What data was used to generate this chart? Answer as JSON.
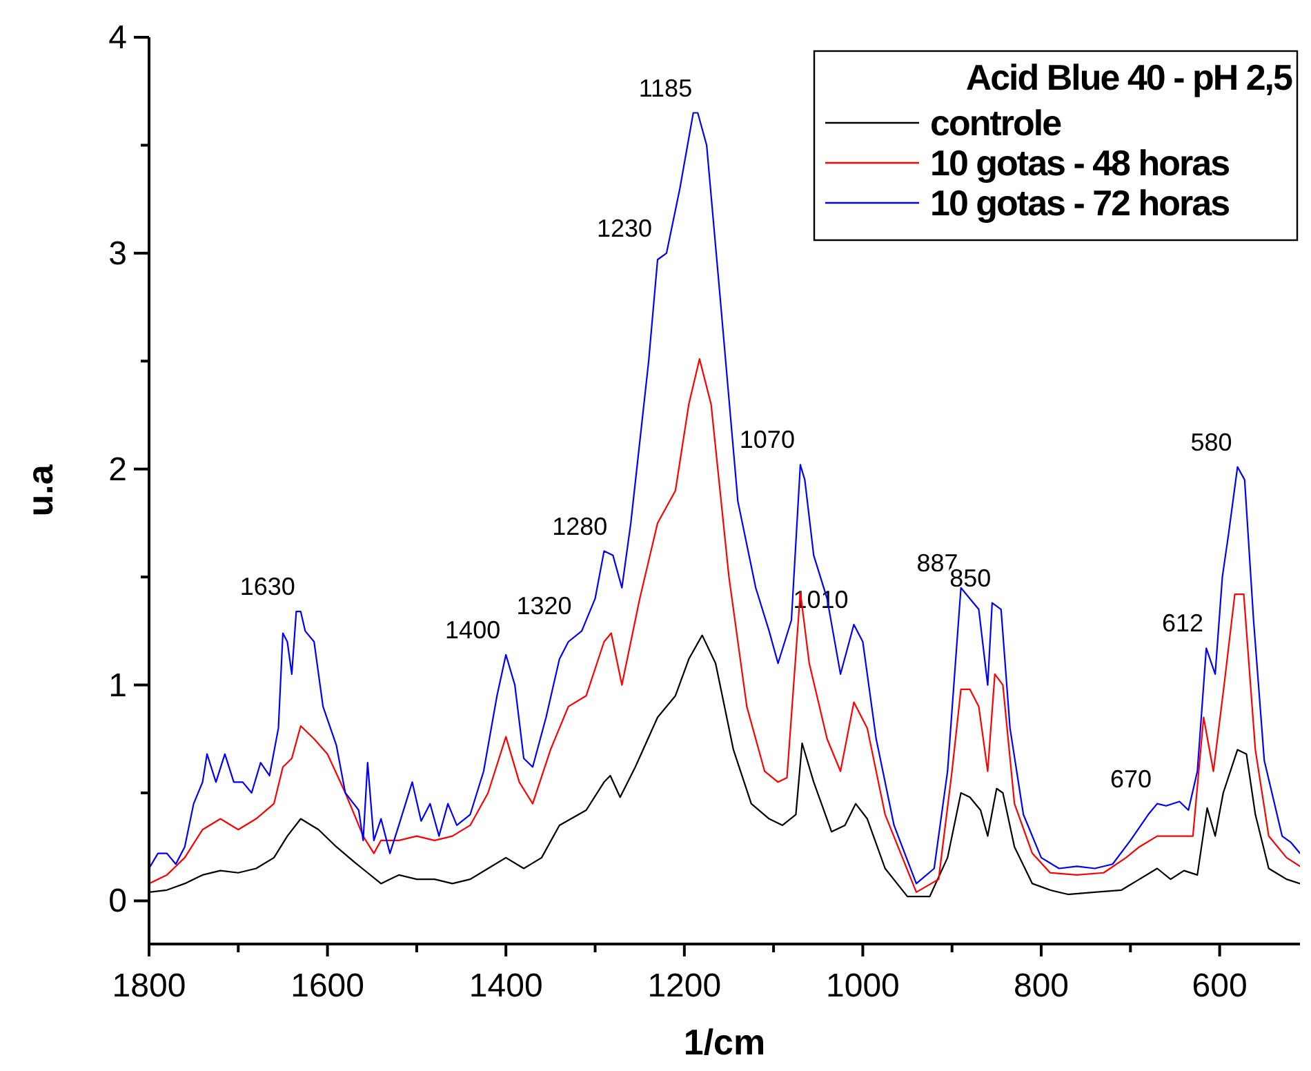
{
  "chart_data": {
    "type": "line",
    "xlabel": "1/cm",
    "ylabel": "u.a",
    "legend_title": "Acid Blue 40 - pH 2,5",
    "legend": "top right",
    "grid": false,
    "line_style": "solid",
    "xlim": [
      1800,
      510
    ],
    "xticks": [
      1800,
      {
        "value": 1700,
        "label": null
      },
      1600,
      {
        "value": 1500,
        "label": null
      },
      1400,
      {
        "value": 1300,
        "label": null
      },
      1200,
      {
        "value": 1100,
        "label": null
      },
      1000,
      {
        "value": 900,
        "label": null
      },
      800,
      {
        "value": 700,
        "label": null
      },
      600
    ],
    "ylim": [
      -0.2,
      4
    ],
    "yticks": [
      0,
      {
        "value": 0.5,
        "label": null
      },
      1,
      {
        "value": 1.5,
        "label": null
      },
      2,
      {
        "value": 2.5,
        "label": null
      },
      3,
      {
        "value": 3.5,
        "label": null
      },
      4
    ],
    "series": [
      {
        "name": "controle",
        "color": "#000000",
        "x": [
          1800,
          1780,
          1760,
          1740,
          1720,
          1700,
          1680,
          1660,
          1645,
          1630,
          1610,
          1590,
          1570,
          1555,
          1540,
          1520,
          1500,
          1480,
          1460,
          1440,
          1420,
          1400,
          1380,
          1360,
          1340,
          1310,
          1290,
          1283,
          1272,
          1255,
          1230,
          1210,
          1195,
          1180,
          1165,
          1145,
          1125,
          1105,
          1090,
          1075,
          1068,
          1055,
          1035,
          1020,
          1008,
          995,
          975,
          950,
          925,
          905,
          890,
          880,
          868,
          860,
          850,
          843,
          830,
          810,
          790,
          770,
          740,
          710,
          690,
          670,
          655,
          640,
          625,
          614,
          605,
          596,
          580,
          570,
          560,
          545,
          525,
          510
        ],
        "values": [
          0.04,
          0.05,
          0.08,
          0.12,
          0.14,
          0.13,
          0.15,
          0.2,
          0.3,
          0.38,
          0.33,
          0.25,
          0.18,
          0.13,
          0.08,
          0.12,
          0.1,
          0.1,
          0.08,
          0.1,
          0.15,
          0.2,
          0.15,
          0.2,
          0.35,
          0.42,
          0.55,
          0.58,
          0.48,
          0.62,
          0.85,
          0.95,
          1.12,
          1.23,
          1.1,
          0.7,
          0.45,
          0.38,
          0.35,
          0.4,
          0.73,
          0.55,
          0.32,
          0.35,
          0.45,
          0.38,
          0.15,
          0.02,
          0.02,
          0.2,
          0.5,
          0.48,
          0.42,
          0.3,
          0.52,
          0.5,
          0.25,
          0.08,
          0.05,
          0.03,
          0.04,
          0.05,
          0.1,
          0.15,
          0.1,
          0.14,
          0.12,
          0.43,
          0.3,
          0.5,
          0.7,
          0.68,
          0.4,
          0.15,
          0.1,
          0.08
        ]
      },
      {
        "name": "10 gotas - 48 horas",
        "color": "#ff0000",
        "x": [
          1800,
          1780,
          1760,
          1740,
          1720,
          1700,
          1680,
          1660,
          1650,
          1640,
          1630,
          1615,
          1600,
          1580,
          1560,
          1548,
          1540,
          1520,
          1500,
          1480,
          1460,
          1440,
          1420,
          1400,
          1385,
          1370,
          1350,
          1330,
          1310,
          1290,
          1282,
          1270,
          1250,
          1230,
          1210,
          1195,
          1183,
          1170,
          1150,
          1130,
          1110,
          1095,
          1085,
          1070,
          1060,
          1040,
          1025,
          1010,
          995,
          975,
          940,
          915,
          900,
          890,
          880,
          870,
          860,
          852,
          843,
          830,
          810,
          790,
          760,
          730,
          705,
          690,
          670,
          650,
          630,
          618,
          607,
          595,
          583,
          573,
          560,
          545,
          525,
          510
        ],
        "values": [
          0.08,
          0.12,
          0.2,
          0.33,
          0.38,
          0.33,
          0.38,
          0.45,
          0.62,
          0.66,
          0.81,
          0.75,
          0.68,
          0.5,
          0.3,
          0.22,
          0.28,
          0.28,
          0.3,
          0.28,
          0.3,
          0.35,
          0.5,
          0.76,
          0.55,
          0.45,
          0.7,
          0.9,
          0.95,
          1.2,
          1.24,
          1.0,
          1.4,
          1.75,
          1.9,
          2.3,
          2.51,
          2.3,
          1.5,
          0.9,
          0.6,
          0.55,
          0.57,
          1.43,
          1.1,
          0.75,
          0.6,
          0.92,
          0.8,
          0.4,
          0.04,
          0.1,
          0.6,
          0.98,
          0.98,
          0.9,
          0.6,
          1.05,
          1.0,
          0.45,
          0.22,
          0.13,
          0.12,
          0.13,
          0.2,
          0.25,
          0.3,
          0.3,
          0.3,
          0.85,
          0.6,
          1.0,
          1.42,
          1.42,
          0.7,
          0.3,
          0.2,
          0.16
        ]
      },
      {
        "name": "10 gotas - 72 horas",
        "color": "#0000ff",
        "x": [
          1800,
          1790,
          1780,
          1770,
          1760,
          1750,
          1740,
          1735,
          1725,
          1715,
          1705,
          1695,
          1685,
          1675,
          1665,
          1655,
          1650,
          1645,
          1640,
          1635,
          1630,
          1625,
          1615,
          1605,
          1590,
          1580,
          1565,
          1560,
          1555,
          1548,
          1540,
          1530,
          1520,
          1505,
          1495,
          1485,
          1475,
          1465,
          1455,
          1440,
          1425,
          1410,
          1400,
          1390,
          1380,
          1370,
          1355,
          1340,
          1330,
          1315,
          1300,
          1290,
          1280,
          1270,
          1260,
          1240,
          1230,
          1220,
          1205,
          1190,
          1185,
          1175,
          1160,
          1140,
          1120,
          1105,
          1095,
          1080,
          1070,
          1065,
          1055,
          1040,
          1025,
          1010,
          1000,
          985,
          965,
          940,
          920,
          905,
          890,
          880,
          870,
          860,
          855,
          845,
          835,
          820,
          800,
          780,
          760,
          740,
          720,
          700,
          680,
          670,
          660,
          645,
          635,
          625,
          615,
          605,
          597,
          590,
          580,
          572,
          562,
          550,
          530,
          520,
          510
        ],
        "values": [
          0.15,
          0.22,
          0.22,
          0.17,
          0.25,
          0.45,
          0.55,
          0.68,
          0.55,
          0.68,
          0.55,
          0.55,
          0.5,
          0.64,
          0.58,
          0.8,
          1.24,
          1.2,
          1.05,
          1.34,
          1.34,
          1.25,
          1.2,
          0.9,
          0.72,
          0.5,
          0.42,
          0.28,
          0.64,
          0.28,
          0.38,
          0.22,
          0.35,
          0.55,
          0.37,
          0.45,
          0.3,
          0.45,
          0.35,
          0.4,
          0.6,
          0.95,
          1.14,
          1.0,
          0.66,
          0.62,
          0.85,
          1.12,
          1.2,
          1.25,
          1.4,
          1.62,
          1.6,
          1.45,
          1.75,
          2.5,
          2.97,
          3.0,
          3.3,
          3.65,
          3.65,
          3.5,
          2.8,
          1.85,
          1.45,
          1.25,
          1.1,
          1.3,
          2.02,
          1.95,
          1.6,
          1.4,
          1.05,
          1.28,
          1.2,
          0.75,
          0.35,
          0.08,
          0.15,
          0.6,
          1.45,
          1.4,
          1.35,
          1.0,
          1.38,
          1.35,
          0.8,
          0.4,
          0.2,
          0.15,
          0.16,
          0.15,
          0.17,
          0.28,
          0.4,
          0.45,
          0.44,
          0.46,
          0.42,
          0.6,
          1.17,
          1.05,
          1.5,
          1.7,
          2.01,
          1.95,
          1.3,
          0.65,
          0.3,
          0.27,
          0.22
        ]
      }
    ],
    "annotations": [
      {
        "text": "1630",
        "x": 1630,
        "y": 1.34
      },
      {
        "text": "1400",
        "x": 1400,
        "y": 1.14
      },
      {
        "text": "1320",
        "x": 1320,
        "y": 1.25
      },
      {
        "text": "1280",
        "x": 1280,
        "y": 1.62
      },
      {
        "text": "1230",
        "x": 1230,
        "y": 3.0
      },
      {
        "text": "1185",
        "x": 1185,
        "y": 3.65
      },
      {
        "text": "1070",
        "x": 1070,
        "y": 2.02
      },
      {
        "text": "1010",
        "x": 1010,
        "y": 1.28
      },
      {
        "text": "887",
        "x": 887,
        "y": 1.45
      },
      {
        "text": "850",
        "x": 850,
        "y": 1.38
      },
      {
        "text": "670",
        "x": 670,
        "y": 0.45
      },
      {
        "text": "612",
        "x": 612,
        "y": 1.17
      },
      {
        "text": "580",
        "x": 580,
        "y": 2.01
      }
    ]
  }
}
